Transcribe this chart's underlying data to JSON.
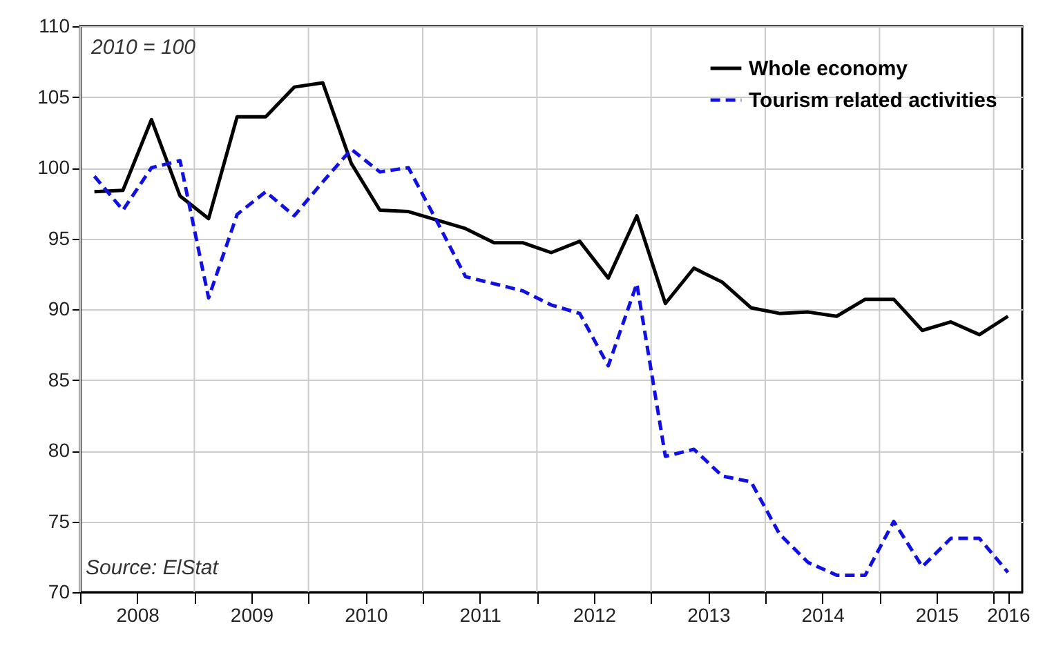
{
  "chart_data": {
    "type": "line",
    "x": [
      2008.125,
      2008.375,
      2008.625,
      2008.875,
      2009.125,
      2009.375,
      2009.625,
      2009.875,
      2010.125,
      2010.375,
      2010.625,
      2010.875,
      2011.125,
      2011.375,
      2011.625,
      2011.875,
      2012.125,
      2012.375,
      2012.625,
      2012.875,
      2013.125,
      2013.375,
      2013.625,
      2013.875,
      2014.125,
      2014.375,
      2014.625,
      2014.875,
      2015.125,
      2015.375,
      2015.625,
      2015.875,
      2016.125
    ],
    "series": [
      {
        "name": "Whole economy",
        "color": "#000000",
        "line_style": "solid",
        "values": [
          98.3,
          98.4,
          103.4,
          98.0,
          96.4,
          103.6,
          103.6,
          105.7,
          106.0,
          100.3,
          97.0,
          96.9,
          96.3,
          95.7,
          94.7,
          94.7,
          94.0,
          94.8,
          92.2,
          96.6,
          90.4,
          92.9,
          91.9,
          90.1,
          89.7,
          89.8,
          89.5,
          90.7,
          90.7,
          88.5,
          89.1,
          88.2,
          89.5
        ]
      },
      {
        "name": "Tourism related activities",
        "color": "#1010e0",
        "line_style": "dashed",
        "values": [
          99.4,
          97.0,
          100.0,
          100.5,
          90.8,
          96.7,
          98.3,
          96.6,
          99.0,
          101.3,
          99.7,
          100.0,
          96.2,
          92.3,
          91.8,
          91.3,
          90.3,
          89.7,
          86.0,
          91.8,
          79.6,
          80.1,
          78.2,
          77.8,
          74.1,
          72.1,
          71.2,
          71.2,
          75.0,
          71.8,
          73.8,
          73.8,
          71.4
        ]
      }
    ],
    "xlim": [
      2008,
      2016.25
    ],
    "xticks": [
      {
        "value": 2008,
        "label": null
      },
      {
        "value": 2008.5,
        "label": "2008"
      },
      {
        "value": 2009,
        "label": null
      },
      {
        "value": 2009.5,
        "label": "2009"
      },
      {
        "value": 2010,
        "label": null
      },
      {
        "value": 2010.5,
        "label": "2010"
      },
      {
        "value": 2011,
        "label": null
      },
      {
        "value": 2011.5,
        "label": "2011"
      },
      {
        "value": 2012,
        "label": null
      },
      {
        "value": 2012.5,
        "label": "2012"
      },
      {
        "value": 2013,
        "label": null
      },
      {
        "value": 2013.5,
        "label": "2013"
      },
      {
        "value": 2014,
        "label": null
      },
      {
        "value": 2014.5,
        "label": "2014"
      },
      {
        "value": 2015,
        "label": null
      },
      {
        "value": 2015.5,
        "label": "2015"
      },
      {
        "value": 2016,
        "label": null
      },
      {
        "value": 2016.125,
        "label": "2016"
      }
    ],
    "ylim": [
      70,
      110
    ],
    "yticks": [
      70,
      75,
      80,
      85,
      90,
      95,
      100,
      105,
      110
    ],
    "grid": true,
    "legend": "top right",
    "annotations": [
      "2010 = 100",
      "Source: ElStat"
    ]
  }
}
